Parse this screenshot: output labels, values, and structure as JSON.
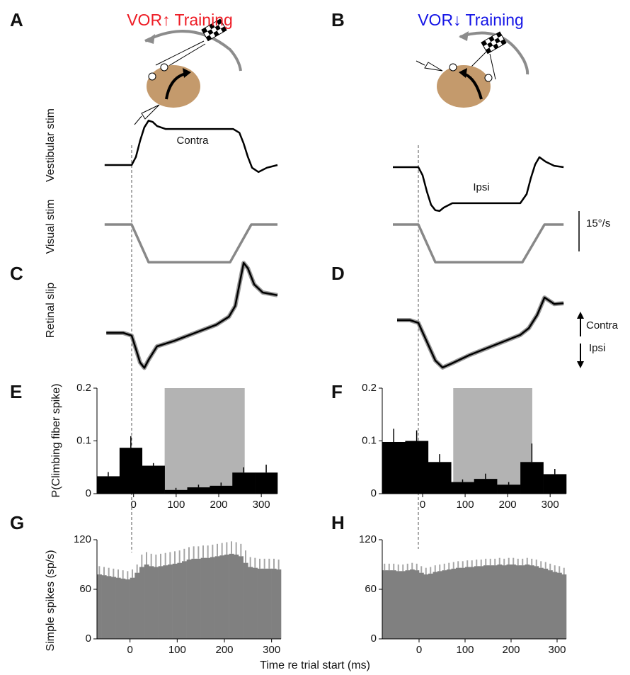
{
  "figure": {
    "panel_labels": [
      "A",
      "B",
      "C",
      "D",
      "E",
      "F",
      "G",
      "H"
    ],
    "xlabel": "Time re trial start (ms)",
    "scale_bar": {
      "value": 15,
      "label": "15°/s"
    },
    "directions": [
      "Contra",
      "Ipsi"
    ]
  },
  "chart_data": [
    {
      "type": "line",
      "title": "VOR↑ Training",
      "title_color": "#ee1c25",
      "ylabel": "Vestibular stim",
      "annotation": "Contra",
      "x": [
        -64,
        -20,
        0,
        10,
        20,
        30,
        40,
        50,
        60,
        80,
        120,
        160,
        200,
        240,
        255,
        265,
        275,
        285,
        300,
        320,
        345
      ],
      "series": [
        {
          "color": "#000000",
          "values": [
            0,
            0,
            0,
            3,
            9,
            14,
            16.5,
            16,
            14.5,
            13.4,
            13.4,
            13.4,
            13.4,
            13.4,
            12,
            8,
            3,
            -1,
            -2.6,
            -1,
            0
          ]
        }
      ]
    },
    {
      "type": "line",
      "ylabel": "Visual stim",
      "x": [
        -64,
        0,
        40,
        233,
        283,
        345
      ],
      "series": [
        {
          "color": "#888888",
          "values": [
            0,
            0,
            -14,
            -14,
            0,
            0
          ]
        }
      ]
    },
    {
      "type": "line",
      "title": "VOR↓ Training",
      "title_color": "#1414e6",
      "annotation": "Ipsi",
      "x": [
        -60,
        -20,
        0,
        10,
        20,
        30,
        40,
        50,
        60,
        80,
        120,
        160,
        200,
        240,
        255,
        265,
        275,
        285,
        300,
        320,
        342
      ],
      "series": [
        {
          "color": "#000000",
          "values": [
            0,
            0,
            0,
            -3,
            -9,
            -14,
            -16,
            -16.3,
            -15,
            -13.4,
            -13.4,
            -13.4,
            -13.4,
            -13.4,
            -10,
            -4,
            1,
            3.7,
            2,
            0.5,
            0
          ]
        }
      ]
    },
    {
      "type": "line",
      "x": [
        -60,
        0,
        40,
        245,
        297,
        342
      ],
      "series": [
        {
          "color": "#888888",
          "values": [
            0,
            0,
            -14,
            -14,
            0,
            0
          ]
        }
      ]
    },
    {
      "type": "line",
      "ylabel": "Retinal slip",
      "x": [
        -60,
        -20,
        0,
        10,
        20,
        30,
        40,
        60,
        80,
        100,
        150,
        200,
        230,
        245,
        255,
        265,
        275,
        290,
        310,
        345
      ],
      "series": [
        {
          "color": "#000000",
          "values": [
            0,
            0,
            -1,
            -6,
            -11,
            -13,
            -10,
            -5,
            -4,
            -3,
            0,
            3,
            6,
            10,
            18,
            26,
            24,
            18,
            15,
            14
          ]
        }
      ]
    },
    {
      "type": "line",
      "x": [
        -50,
        -20,
        0,
        20,
        40,
        57,
        80,
        120,
        160,
        200,
        240,
        260,
        280,
        297,
        320,
        342
      ],
      "series": [
        {
          "color": "#000000",
          "values": [
            0,
            0,
            -1,
            -8,
            -15,
            -17.6,
            -16,
            -13,
            -10.5,
            -8,
            -5.5,
            -3,
            2,
            8.4,
            6,
            6.3
          ]
        }
      ]
    },
    {
      "type": "histogram",
      "ylabel": "P(Climbing fiber spike)",
      "color": "#000000",
      "error_color": "#000000",
      "span": [
        73,
        261
      ],
      "span_color": "#b3b3b3",
      "bins": [
        -86,
        -33,
        20,
        73,
        126,
        179,
        232,
        285,
        338
      ],
      "values": [
        0.033,
        0.087,
        0.053,
        0.007,
        0.012,
        0.015,
        0.04,
        0.04
      ],
      "errors": [
        0.008,
        0.022,
        0.005,
        0.004,
        0.005,
        0.006,
        0.01,
        0.015
      ],
      "xlim": [
        -86,
        338
      ],
      "ylim": [
        0,
        0.2
      ],
      "xticks": [
        0,
        100,
        200,
        300
      ],
      "yticks": [
        0,
        0.1,
        0.2
      ]
    },
    {
      "type": "histogram",
      "color": "#000000",
      "error_color": "#000000",
      "span": [
        72,
        258
      ],
      "span_color": "#b3b3b3",
      "bins": [
        -95,
        -41,
        13,
        67,
        121,
        175,
        230,
        284,
        338
      ],
      "values": [
        0.098,
        0.1,
        0.06,
        0.022,
        0.028,
        0.017,
        0.06,
        0.037
      ],
      "errors": [
        0.025,
        0.02,
        0.015,
        0.005,
        0.01,
        0.005,
        0.035,
        0.01
      ],
      "xlim": [
        -95,
        338
      ],
      "ylim": [
        0,
        0.2
      ],
      "xticks": [
        0,
        100,
        200,
        300
      ],
      "yticks": [
        0,
        0.1,
        0.2
      ]
    },
    {
      "type": "histogram",
      "ylabel": "Simple spikes (sp/s)",
      "color": "#808080",
      "error_color": "#a6a6a6",
      "bins": [
        -70,
        -60,
        -50,
        -40,
        -30,
        -20,
        -10,
        0,
        10,
        20,
        30,
        40,
        50,
        60,
        70,
        80,
        90,
        100,
        110,
        120,
        130,
        140,
        150,
        160,
        170,
        180,
        190,
        200,
        210,
        220,
        230,
        240,
        250,
        260,
        270,
        280,
        290,
        300,
        310,
        320
      ],
      "values": [
        78,
        77,
        76,
        75,
        74,
        73,
        72,
        74,
        80,
        87,
        90,
        88,
        87,
        88,
        89,
        90,
        91,
        92,
        94,
        96,
        97,
        97,
        98,
        98,
        99,
        100,
        101,
        102,
        103,
        102,
        100,
        92,
        87,
        86,
        85,
        85,
        85,
        85,
        84
      ],
      "errors": [
        10,
        10,
        10,
        10,
        10,
        10,
        10,
        10,
        10,
        15,
        15,
        15,
        15,
        15,
        15,
        15,
        15,
        15,
        15,
        15,
        15,
        15,
        15,
        15,
        15,
        15,
        15,
        15,
        15,
        15,
        15,
        15,
        12,
        12,
        12,
        12,
        12,
        12,
        12
      ],
      "xlim": [
        -70,
        320
      ],
      "ylim": [
        0,
        120
      ],
      "xticks": [
        0,
        100,
        200,
        300
      ],
      "yticks": [
        0,
        60,
        120
      ]
    },
    {
      "type": "histogram",
      "color": "#808080",
      "error_color": "#a6a6a6",
      "bins": [
        -80,
        -70,
        -60,
        -50,
        -40,
        -30,
        -20,
        -10,
        0,
        10,
        20,
        30,
        40,
        50,
        60,
        70,
        80,
        90,
        100,
        110,
        120,
        130,
        140,
        150,
        160,
        170,
        180,
        190,
        200,
        210,
        220,
        230,
        240,
        250,
        260,
        270,
        280,
        290,
        300,
        310,
        320
      ],
      "values": [
        83,
        83,
        83,
        82,
        82,
        83,
        84,
        83,
        80,
        78,
        79,
        81,
        82,
        83,
        84,
        85,
        86,
        86,
        87,
        87,
        88,
        88,
        89,
        89,
        89,
        90,
        89,
        90,
        90,
        89,
        89,
        90,
        89,
        88,
        86,
        85,
        83,
        81,
        80,
        78
      ],
      "errors": [
        8,
        8,
        8,
        8,
        8,
        8,
        8,
        8,
        8,
        8,
        8,
        8,
        8,
        8,
        8,
        8,
        8,
        8,
        8,
        8,
        8,
        8,
        8,
        8,
        8,
        8,
        8,
        8,
        8,
        8,
        8,
        8,
        8,
        8,
        8,
        8,
        8,
        8,
        8,
        8
      ],
      "xlim": [
        -80,
        320
      ],
      "ylim": [
        0,
        120
      ],
      "xticks": [
        0,
        100,
        200,
        300
      ],
      "yticks": [
        0,
        60,
        120
      ]
    }
  ]
}
